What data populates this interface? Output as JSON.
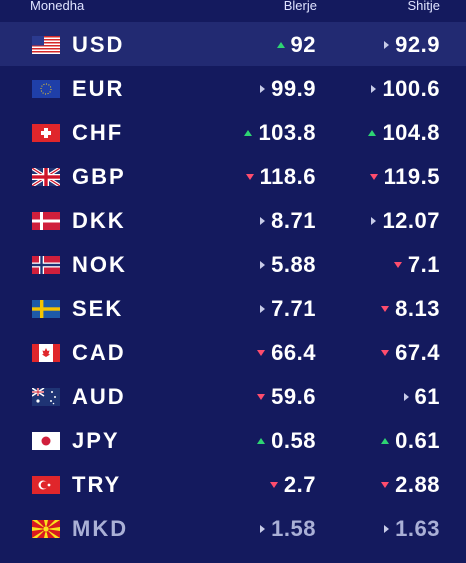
{
  "header": {
    "currency": "Monedha",
    "buy": "Blerje",
    "sell": "Shitje"
  },
  "colors": {
    "background": "#141a5e",
    "highlight": "#222a72",
    "up": "#2ed573",
    "down": "#ff4d6d"
  },
  "rows": [
    {
      "code": "USD",
      "flag": "us-flag-icon",
      "buy": "92",
      "buy_trend": "up",
      "sell": "92.9",
      "sell_trend": "flat"
    },
    {
      "code": "EUR",
      "flag": "eu-flag-icon",
      "buy": "99.9",
      "buy_trend": "flat",
      "sell": "100.6",
      "sell_trend": "flat"
    },
    {
      "code": "CHF",
      "flag": "ch-flag-icon",
      "buy": "103.8",
      "buy_trend": "up",
      "sell": "104.8",
      "sell_trend": "up"
    },
    {
      "code": "GBP",
      "flag": "gb-flag-icon",
      "buy": "118.6",
      "buy_trend": "down",
      "sell": "119.5",
      "sell_trend": "down"
    },
    {
      "code": "DKK",
      "flag": "dk-flag-icon",
      "buy": "8.71",
      "buy_trend": "flat",
      "sell": "12.07",
      "sell_trend": "flat"
    },
    {
      "code": "NOK",
      "flag": "no-flag-icon",
      "buy": "5.88",
      "buy_trend": "flat",
      "sell": "7.1",
      "sell_trend": "down"
    },
    {
      "code": "SEK",
      "flag": "se-flag-icon",
      "buy": "7.71",
      "buy_trend": "flat",
      "sell": "8.13",
      "sell_trend": "down"
    },
    {
      "code": "CAD",
      "flag": "ca-flag-icon",
      "buy": "66.4",
      "buy_trend": "down",
      "sell": "67.4",
      "sell_trend": "down"
    },
    {
      "code": "AUD",
      "flag": "au-flag-icon",
      "buy": "59.6",
      "buy_trend": "down",
      "sell": "61",
      "sell_trend": "flat"
    },
    {
      "code": "JPY",
      "flag": "jp-flag-icon",
      "buy": "0.58",
      "buy_trend": "up",
      "sell": "0.61",
      "sell_trend": "up"
    },
    {
      "code": "TRY",
      "flag": "tr-flag-icon",
      "buy": "2.7",
      "buy_trend": "down",
      "sell": "2.88",
      "sell_trend": "down"
    },
    {
      "code": "MKD",
      "flag": "mk-flag-icon",
      "buy": "1.58",
      "buy_trend": "flat",
      "sell": "1.63",
      "sell_trend": "flat"
    }
  ]
}
